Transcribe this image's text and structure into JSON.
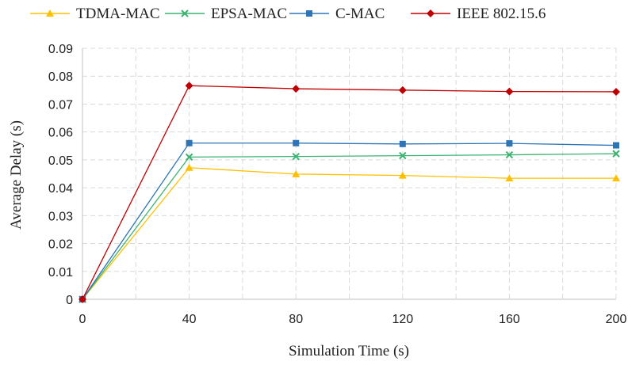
{
  "chart_data": {
    "type": "line",
    "xlabel": "Simulation Time (s)",
    "ylabel": "Average Delay (s)",
    "x": [
      0,
      40,
      80,
      120,
      160,
      200
    ],
    "xlim": [
      0,
      200
    ],
    "ylim": [
      0,
      0.09
    ],
    "x_ticks": [
      "0",
      "40",
      "80",
      "120",
      "160",
      "200"
    ],
    "y_ticks": [
      "0",
      "0.01",
      "0.02",
      "0.03",
      "0.04",
      "0.05",
      "0.06",
      "0.07",
      "0.08",
      "0.09"
    ],
    "grid": true,
    "legend_position": "top",
    "series": [
      {
        "name": "TDMA-MAC",
        "color": "#FFC000",
        "marker": "triangle",
        "values": [
          0,
          0.0472,
          0.0449,
          0.0444,
          0.0434,
          0.0434
        ]
      },
      {
        "name": "EPSA-MAC",
        "color": "#3CB371",
        "marker": "x",
        "values": [
          0,
          0.051,
          0.0512,
          0.0515,
          0.0518,
          0.0522
        ]
      },
      {
        "name": "C-MAC",
        "color": "#2E75B6",
        "marker": "square",
        "values": [
          0,
          0.056,
          0.056,
          0.0557,
          0.0559,
          0.0552
        ]
      },
      {
        "name": "IEEE 802.15.6",
        "color": "#C00000",
        "marker": "diamond",
        "values": [
          0,
          0.0766,
          0.0755,
          0.075,
          0.0745,
          0.0744
        ]
      }
    ]
  }
}
